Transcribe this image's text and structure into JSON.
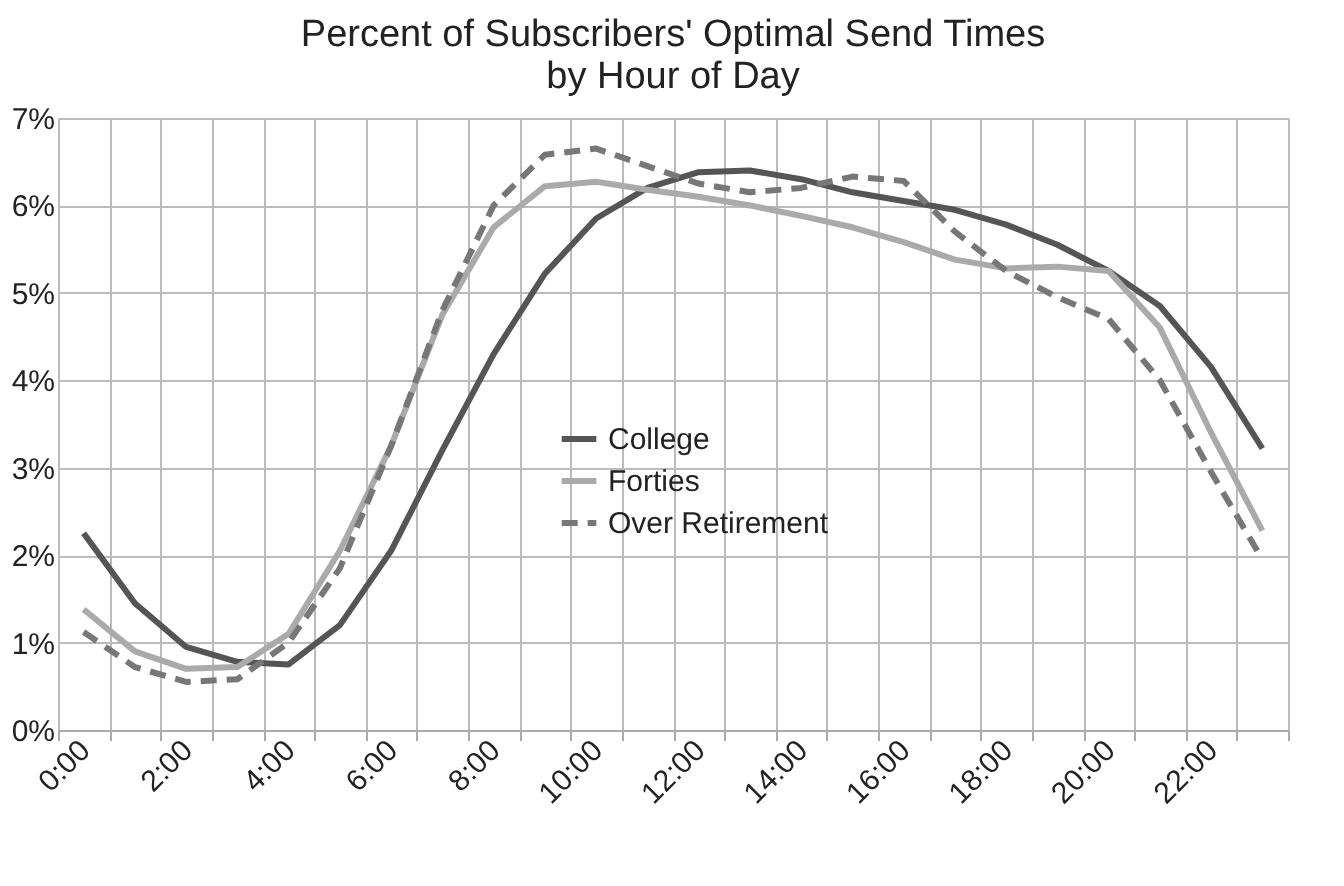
{
  "chart_data": {
    "type": "line",
    "title": "Percent of Subscribers' Optimal Send Times\nby Hour of Day",
    "categories": [
      "0:00",
      null,
      "2:00",
      null,
      "4:00",
      null,
      "6:00",
      null,
      "8:00",
      null,
      "10:00",
      null,
      "12:00",
      null,
      "14:00",
      null,
      "16:00",
      null,
      "18:00",
      null,
      "20:00",
      null,
      "22:00",
      null
    ],
    "series": [
      {
        "name": "College",
        "color": "#555555",
        "line_style": "solid",
        "values": [
          2.25,
          1.45,
          0.95,
          0.78,
          0.75,
          1.2,
          2.05,
          3.2,
          4.3,
          5.22,
          5.85,
          6.2,
          6.38,
          6.4,
          6.3,
          6.15,
          6.05,
          5.95,
          5.78,
          5.55,
          5.25,
          4.85,
          4.15,
          3.22
        ]
      },
      {
        "name": "Forties",
        "color": "#aaaaaa",
        "line_style": "solid",
        "values": [
          1.38,
          0.9,
          0.7,
          0.72,
          1.1,
          2.05,
          3.25,
          4.75,
          5.75,
          6.22,
          6.27,
          6.18,
          6.1,
          6.0,
          5.88,
          5.75,
          5.58,
          5.38,
          5.28,
          5.3,
          5.25,
          4.6,
          3.4,
          2.28
        ]
      },
      {
        "name": "Over Retirement",
        "color": "#777777",
        "line_style": "dashed",
        "values": [
          1.12,
          0.72,
          0.55,
          0.58,
          1.0,
          1.85,
          3.25,
          4.8,
          6.0,
          6.58,
          6.65,
          6.45,
          6.25,
          6.15,
          6.2,
          6.33,
          6.28,
          5.7,
          5.25,
          4.95,
          4.7,
          4.0,
          2.95,
          1.95
        ]
      }
    ],
    "ylim": [
      0,
      7
    ],
    "yticks": [
      {
        "value": 0,
        "label": "0%"
      },
      {
        "value": 1,
        "label": "1%"
      },
      {
        "value": 2,
        "label": "2%"
      },
      {
        "value": 3,
        "label": "3%"
      },
      {
        "value": 4,
        "label": "4%"
      },
      {
        "value": 5,
        "label": "5%"
      },
      {
        "value": 6,
        "label": "6%"
      },
      {
        "value": 7,
        "label": "7%"
      }
    ],
    "grid": true,
    "legend": "center",
    "marker": "none"
  }
}
